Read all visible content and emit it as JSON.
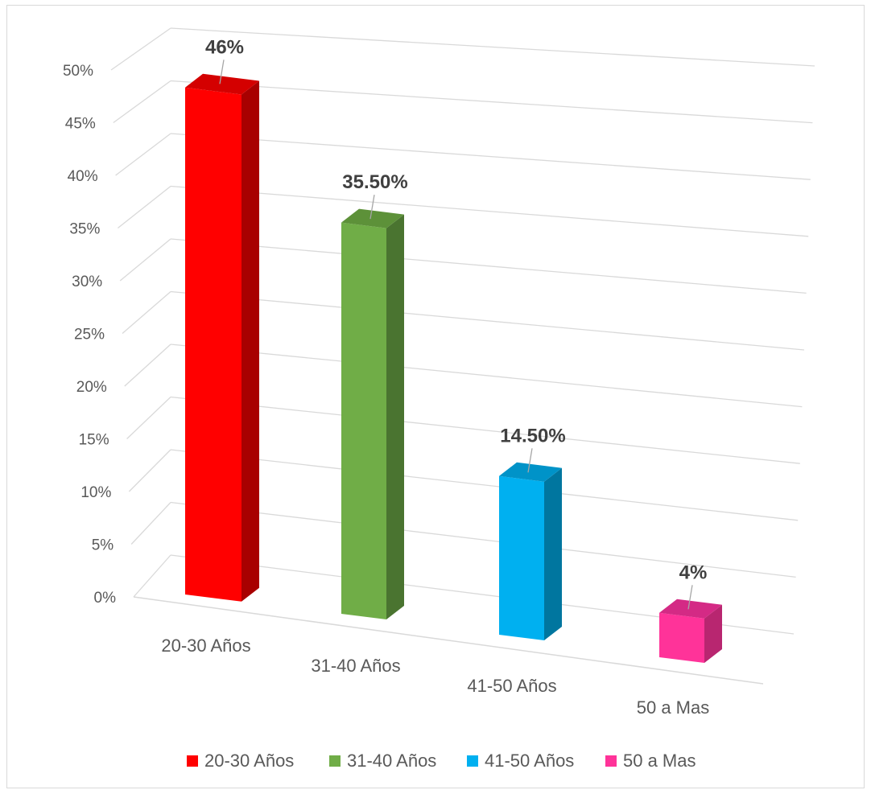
{
  "chart_data": {
    "type": "bar",
    "variant": "3d-column",
    "categories": [
      "20-30 Años",
      "31-40 Años",
      "41-50 Años",
      "50 a Mas"
    ],
    "values": [
      46,
      35.5,
      14.5,
      4
    ],
    "data_labels": [
      "46%",
      "35.50%",
      "14.50%",
      "4%"
    ],
    "series_colors": {
      "front": [
        "#ff0000",
        "#70ad47",
        "#00b0f0",
        "#ff3399"
      ],
      "side": [
        "#a80000",
        "#4a7430",
        "#00769f",
        "#b82670"
      ],
      "top": [
        "#d40000",
        "#5d9139",
        "#0093c8",
        "#d42a85"
      ]
    },
    "ylim": [
      0,
      50
    ],
    "ytick_values": [
      0,
      5,
      10,
      15,
      20,
      25,
      30,
      35,
      40,
      45,
      50
    ],
    "ytick_labels": [
      "0%",
      "5%",
      "10%",
      "15%",
      "20%",
      "25%",
      "30%",
      "35%",
      "40%",
      "45%",
      "50%"
    ],
    "grid": true,
    "legend": {
      "position": "bottom",
      "entries": [
        "20-30 Años",
        "31-40 Años",
        "41-50 Años",
        "50 a Mas"
      ],
      "colors": [
        "#ff0000",
        "#70ad47",
        "#00b0f0",
        "#ff3399"
      ]
    }
  }
}
